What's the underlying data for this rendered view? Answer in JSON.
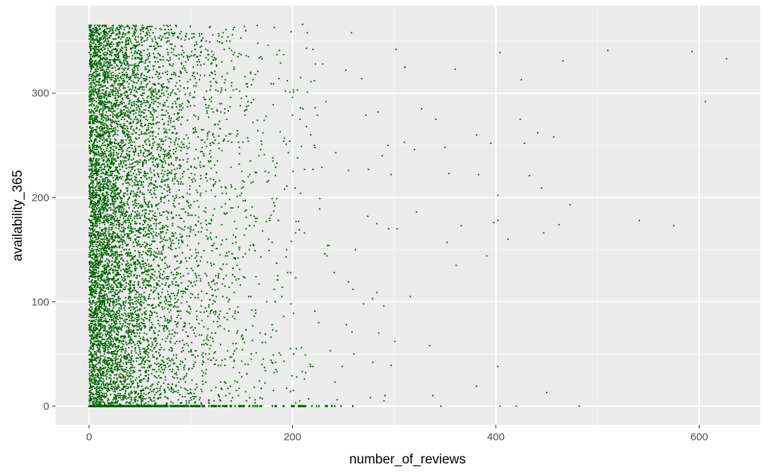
{
  "chart_data": {
    "type": "scatter",
    "title": "",
    "xlabel": "number_of_reviews",
    "ylabel": "availability_365",
    "xlim": [
      -33,
      660
    ],
    "ylim": [
      -18,
      384
    ],
    "x_ticks": [
      0,
      200,
      400,
      600
    ],
    "y_ticks": [
      0,
      100,
      200,
      300
    ],
    "grid": true,
    "legend": "none",
    "colors": {
      "point": "#006400",
      "panel_background": "#ebebeb",
      "grid_major": "#ffffff",
      "grid_minor": "#f5f5f5",
      "tick_text": "#4d4d4d"
    },
    "series": [
      {
        "values_note_excluded": true,
        "points": [
          [
            627,
            333
          ],
          [
            593,
            340
          ],
          [
            606,
            292
          ],
          [
            575,
            173
          ],
          [
            541,
            178
          ],
          [
            510,
            341
          ],
          [
            466,
            331
          ],
          [
            482,
            0
          ],
          [
            450,
            13
          ],
          [
            457,
            258
          ],
          [
            462,
            174
          ],
          [
            447,
            166
          ],
          [
            473,
            193
          ],
          [
            441,
            262
          ],
          [
            445,
            209
          ],
          [
            433,
            221
          ],
          [
            425,
            313
          ],
          [
            424,
            275
          ],
          [
            428,
            252
          ],
          [
            404,
            339
          ],
          [
            402,
            202
          ],
          [
            412,
            160
          ],
          [
            402,
            178
          ],
          [
            398,
            176
          ],
          [
            402,
            38
          ],
          [
            404,
            0
          ],
          [
            420,
            0
          ],
          [
            395,
            252
          ],
          [
            391,
            144
          ],
          [
            383,
            222
          ],
          [
            381,
            260
          ],
          [
            381,
            19
          ],
          [
            366,
            173
          ],
          [
            360,
            323
          ],
          [
            361,
            135
          ],
          [
            350,
            248
          ],
          [
            354,
            223
          ],
          [
            352,
            157
          ],
          [
            341,
            275
          ],
          [
            346,
            0
          ],
          [
            338,
            10
          ],
          [
            335,
            58
          ],
          [
            327,
            285
          ],
          [
            320,
            246
          ],
          [
            322,
            186
          ],
          [
            316,
            105
          ],
          [
            310,
            253
          ],
          [
            302,
            342
          ],
          [
            297,
            222
          ],
          [
            294,
            250
          ],
          [
            297,
            39
          ],
          [
            290,
            5
          ],
          [
            284,
            282
          ],
          [
            283,
            109
          ],
          [
            279,
            42
          ],
          [
            274,
            182
          ],
          [
            268,
            314
          ],
          [
            262,
            150
          ],
          [
            255,
            226
          ],
          [
            253,
            78
          ],
          [
            249,
            38
          ],
          [
            241,
            128
          ],
          [
            244,
            6
          ],
          [
            233,
            292
          ],
          [
            227,
            199
          ],
          [
            222,
            91
          ],
          [
            218,
            260
          ],
          [
            213,
            32
          ],
          [
            210,
            366
          ],
          [
            208,
            315
          ],
          [
            205,
            238
          ],
          [
            203,
            166
          ],
          [
            201,
            89
          ],
          [
            198,
            14
          ],
          [
            195,
            312
          ],
          [
            192,
            257
          ],
          [
            190,
            114
          ],
          [
            187,
            51
          ],
          [
            182,
            363
          ],
          [
            180,
            199
          ],
          [
            177,
            149
          ],
          [
            173,
            22
          ],
          [
            170,
            333
          ],
          [
            167,
            240
          ],
          [
            164,
            177
          ],
          [
            160,
            92
          ],
          [
            158,
            8
          ],
          [
            155,
            284
          ],
          [
            151,
            216
          ],
          [
            148,
            131
          ],
          [
            145,
            55
          ],
          [
            141,
            356
          ],
          [
            138,
            261
          ],
          [
            134,
            194
          ],
          [
            131,
            117
          ],
          [
            127,
            39
          ],
          [
            124,
            318
          ],
          [
            120,
            228
          ],
          [
            117,
            161
          ],
          [
            113,
            76
          ],
          [
            110,
            3
          ],
          [
            106,
            347
          ],
          [
            103,
            279
          ],
          [
            99,
            208
          ],
          [
            96,
            139
          ],
          [
            92,
            63
          ],
          [
            89,
            302
          ],
          [
            85,
            244
          ],
          [
            82,
            173
          ],
          [
            78,
            97
          ],
          [
            75,
            25
          ],
          [
            71,
            361
          ],
          [
            68,
            291
          ],
          [
            64,
            222
          ],
          [
            61,
            151
          ],
          [
            57,
            84
          ],
          [
            54,
            12
          ],
          [
            50,
            330
          ],
          [
            47,
            256
          ],
          [
            43,
            187
          ],
          [
            40,
            116
          ],
          [
            36,
            48
          ],
          [
            33,
            343
          ],
          [
            29,
            273
          ],
          [
            26,
            201
          ],
          [
            22,
            132
          ],
          [
            19,
            60
          ],
          [
            15,
            365
          ],
          [
            12,
            297
          ],
          [
            8,
            231
          ],
          [
            5,
            158
          ],
          [
            2,
            88
          ],
          [
            0,
            0
          ],
          [
            0,
            365
          ]
        ]
      }
    ]
  }
}
